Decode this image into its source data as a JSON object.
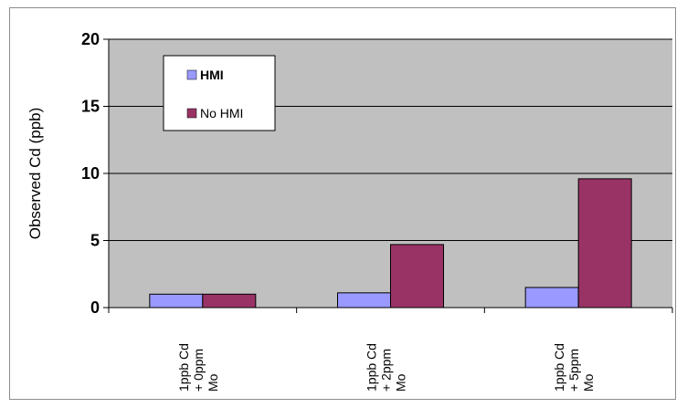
{
  "chart_data": {
    "type": "bar",
    "title": "",
    "xlabel": "",
    "ylabel": "Observed Cd (ppb)",
    "ylim": [
      0,
      20
    ],
    "yticks": [
      0,
      5,
      10,
      15,
      20
    ],
    "grid": true,
    "legend_position": "top-left",
    "categories": [
      [
        "1ppb Cd",
        "+ 0ppm",
        "Mo"
      ],
      [
        "1ppb Cd",
        "+ 2ppm",
        "Mo"
      ],
      [
        "1ppb Cd",
        "+ 5ppm",
        "Mo"
      ]
    ],
    "series": [
      {
        "name": "HMI",
        "values": [
          1.0,
          1.1,
          1.5
        ],
        "color": "#9999ff"
      },
      {
        "name": "No HMI",
        "values": [
          1.0,
          4.7,
          9.6
        ],
        "color": "#993366"
      }
    ],
    "plot_background": "#c0c0c0"
  }
}
